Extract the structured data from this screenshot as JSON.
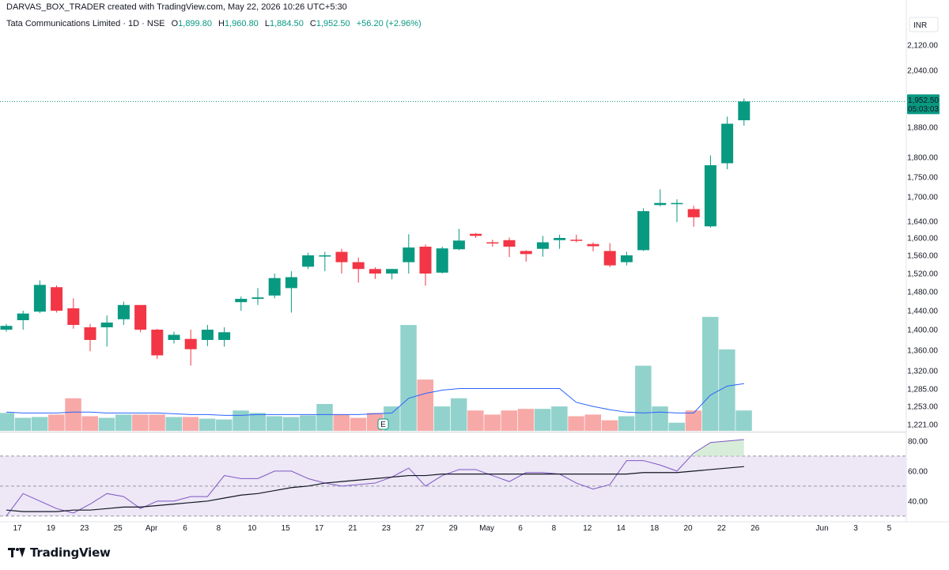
{
  "header": {
    "credit": "DARVAS_BOX_TRADER created with TradingView.com, May 22, 2026 10:26 UTC+5:30",
    "symbol": "Tata Communications Limited · 1D · NSE",
    "o_label": "O",
    "o_value": "1,899.80",
    "h_label": "H",
    "h_value": "1,960.80",
    "l_label": "L",
    "l_value": "1,884.50",
    "c_label": "C",
    "c_value": "1,952.50",
    "change": "+56.20 (+2.96%)"
  },
  "currency": "INR",
  "price_tag": {
    "price": "1,952.50",
    "countdown": "05:03:03"
  },
  "earnings_marker": "E",
  "brand": "TradingView",
  "colors": {
    "up": "#089981",
    "down": "#f23645",
    "vol_up": "#92d2cc",
    "vol_down": "#f7a9a7",
    "vol_ma": "#2962ff",
    "rsi": "#7e57c2",
    "rsi_ma": "#131722",
    "rsi_band": "#ede7f6"
  },
  "chart_data": {
    "type": "candlestick",
    "price_axis_ticks": [
      "2,120.00",
      "2,040.00",
      "1,880.00",
      "1,800.00",
      "1,750.00",
      "1,700.00",
      "1,640.00",
      "1,600.00",
      "1,560.00",
      "1,520.00",
      "1,480.00",
      "1,440.00",
      "1,400.00",
      "1,360.00",
      "1,320.00",
      "1,285.00",
      "1,253.00",
      "1,221.00"
    ],
    "price_axis_values": [
      2120,
      2040,
      1880,
      1800,
      1750,
      1700,
      1640,
      1600,
      1560,
      1520,
      1480,
      1440,
      1400,
      1360,
      1320,
      1285,
      1253,
      1221
    ],
    "x_axis_labels": [
      "17",
      "19",
      "23",
      "25",
      "Apr",
      "6",
      "8",
      "10",
      "15",
      "17",
      "21",
      "23",
      "27",
      "29",
      "May",
      "6",
      "8",
      "12",
      "14",
      "18",
      "20",
      "22",
      "26",
      "Jun",
      "3",
      "5"
    ],
    "x_axis_label_slots": [
      0,
      1,
      2,
      3,
      4,
      5,
      6,
      7,
      8,
      9,
      10,
      11,
      12,
      13,
      14,
      15,
      16,
      17,
      18,
      19,
      20,
      21,
      22,
      24,
      25,
      26
    ],
    "candles": [
      {
        "o": 1400,
        "h": 1412,
        "l": 1396,
        "c": 1408
      },
      {
        "o": 1420,
        "h": 1440,
        "l": 1400,
        "c": 1434
      },
      {
        "o": 1438,
        "h": 1505,
        "l": 1435,
        "c": 1495
      },
      {
        "o": 1490,
        "h": 1494,
        "l": 1436,
        "c": 1440
      },
      {
        "o": 1445,
        "h": 1466,
        "l": 1402,
        "c": 1410
      },
      {
        "o": 1405,
        "h": 1412,
        "l": 1358,
        "c": 1380
      },
      {
        "o": 1405,
        "h": 1430,
        "l": 1367,
        "c": 1415
      },
      {
        "o": 1422,
        "h": 1459,
        "l": 1410,
        "c": 1452
      },
      {
        "o": 1452,
        "h": 1452,
        "l": 1395,
        "c": 1400
      },
      {
        "o": 1400,
        "h": 1402,
        "l": 1343,
        "c": 1350
      },
      {
        "o": 1380,
        "h": 1396,
        "l": 1373,
        "c": 1390
      },
      {
        "o": 1382,
        "h": 1400,
        "l": 1330,
        "c": 1362
      },
      {
        "o": 1380,
        "h": 1410,
        "l": 1368,
        "c": 1400
      },
      {
        "o": 1380,
        "h": 1405,
        "l": 1367,
        "c": 1395
      },
      {
        "o": 1458,
        "h": 1470,
        "l": 1440,
        "c": 1465
      },
      {
        "o": 1465,
        "h": 1488,
        "l": 1452,
        "c": 1468
      },
      {
        "o": 1472,
        "h": 1520,
        "l": 1466,
        "c": 1510
      },
      {
        "o": 1488,
        "h": 1525,
        "l": 1436,
        "c": 1512
      },
      {
        "o": 1535,
        "h": 1566,
        "l": 1530,
        "c": 1560
      },
      {
        "o": 1560,
        "h": 1568,
        "l": 1525,
        "c": 1560
      },
      {
        "o": 1568,
        "h": 1575,
        "l": 1520,
        "c": 1545
      },
      {
        "o": 1545,
        "h": 1555,
        "l": 1500,
        "c": 1530
      },
      {
        "o": 1530,
        "h": 1534,
        "l": 1508,
        "c": 1520
      },
      {
        "o": 1520,
        "h": 1530,
        "l": 1507,
        "c": 1530
      },
      {
        "o": 1545,
        "h": 1609,
        "l": 1520,
        "c": 1578
      },
      {
        "o": 1580,
        "h": 1585,
        "l": 1493,
        "c": 1520
      },
      {
        "o": 1522,
        "h": 1580,
        "l": 1520,
        "c": 1576
      },
      {
        "o": 1574,
        "h": 1622,
        "l": 1572,
        "c": 1594
      },
      {
        "o": 1610,
        "h": 1612,
        "l": 1600,
        "c": 1605
      },
      {
        "o": 1590,
        "h": 1596,
        "l": 1580,
        "c": 1588
      },
      {
        "o": 1595,
        "h": 1601,
        "l": 1556,
        "c": 1580
      },
      {
        "o": 1570,
        "h": 1572,
        "l": 1546,
        "c": 1563
      },
      {
        "o": 1575,
        "h": 1605,
        "l": 1557,
        "c": 1590
      },
      {
        "o": 1595,
        "h": 1608,
        "l": 1575,
        "c": 1600
      },
      {
        "o": 1596,
        "h": 1608,
        "l": 1590,
        "c": 1594
      },
      {
        "o": 1586,
        "h": 1590,
        "l": 1569,
        "c": 1581
      },
      {
        "o": 1570,
        "h": 1588,
        "l": 1534,
        "c": 1538
      },
      {
        "o": 1545,
        "h": 1568,
        "l": 1538,
        "c": 1560
      },
      {
        "o": 1572,
        "h": 1672,
        "l": 1570,
        "c": 1665
      },
      {
        "o": 1680,
        "h": 1719,
        "l": 1677,
        "c": 1685
      },
      {
        "o": 1685,
        "h": 1694,
        "l": 1638,
        "c": 1685
      },
      {
        "o": 1670,
        "h": 1678,
        "l": 1627,
        "c": 1650
      },
      {
        "o": 1628,
        "h": 1805,
        "l": 1625,
        "c": 1780
      },
      {
        "o": 1785,
        "h": 1910,
        "l": 1770,
        "c": 1890
      },
      {
        "o": 1899.8,
        "h": 1960.8,
        "l": 1884.5,
        "c": 1952.5
      }
    ],
    "volume": [
      0.22,
      0.16,
      0.17,
      0.2,
      0.4,
      0.18,
      0.16,
      0.2,
      0.2,
      0.2,
      0.17,
      0.17,
      0.15,
      0.14,
      0.25,
      0.22,
      0.18,
      0.17,
      0.19,
      0.33,
      0.2,
      0.16,
      0.22,
      0.3,
      1.3,
      0.63,
      0.3,
      0.4,
      0.25,
      0.2,
      0.25,
      0.27,
      0.27,
      0.3,
      0.18,
      0.2,
      0.13,
      0.18,
      0.8,
      0.3,
      0.1,
      0.25,
      1.4,
      1.0,
      0.25
    ],
    "volume_ma": [
      0.23,
      0.22,
      0.22,
      0.22,
      0.23,
      0.23,
      0.22,
      0.22,
      0.22,
      0.22,
      0.21,
      0.2,
      0.2,
      0.19,
      0.19,
      0.2,
      0.2,
      0.2,
      0.2,
      0.2,
      0.2,
      0.2,
      0.21,
      0.22,
      0.4,
      0.46,
      0.5,
      0.52,
      0.52,
      0.52,
      0.52,
      0.52,
      0.52,
      0.52,
      0.35,
      0.3,
      0.26,
      0.23,
      0.22,
      0.23,
      0.22,
      0.22,
      0.44,
      0.55,
      0.58
    ],
    "rsi": [
      30,
      45,
      40,
      35,
      32,
      38,
      45,
      43,
      35,
      40,
      40,
      43,
      43,
      57,
      55,
      55,
      60,
      60,
      55,
      52,
      50,
      51,
      52,
      56,
      62,
      50,
      57,
      61,
      61,
      57,
      53,
      59,
      59,
      58,
      52,
      48,
      51,
      67,
      67,
      64,
      60,
      72,
      79,
      80,
      81
    ],
    "rsi_ma": [
      34,
      33,
      33,
      33,
      34,
      34,
      35,
      36,
      36,
      37,
      38,
      39,
      40,
      42,
      44,
      45,
      47,
      49,
      50,
      52,
      53,
      54,
      55,
      56,
      57,
      57,
      58,
      58,
      58,
      58,
      58,
      58,
      58,
      58,
      58,
      58,
      58,
      58,
      59,
      59,
      59,
      60,
      61,
      62,
      63
    ],
    "rsi_axis_ticks": [
      "80.00",
      "60.00",
      "40.00"
    ],
    "rsi_axis_values": [
      80,
      60,
      40
    ],
    "rsi_bands": {
      "upper": 70,
      "middle": 50,
      "lower": 30
    }
  }
}
